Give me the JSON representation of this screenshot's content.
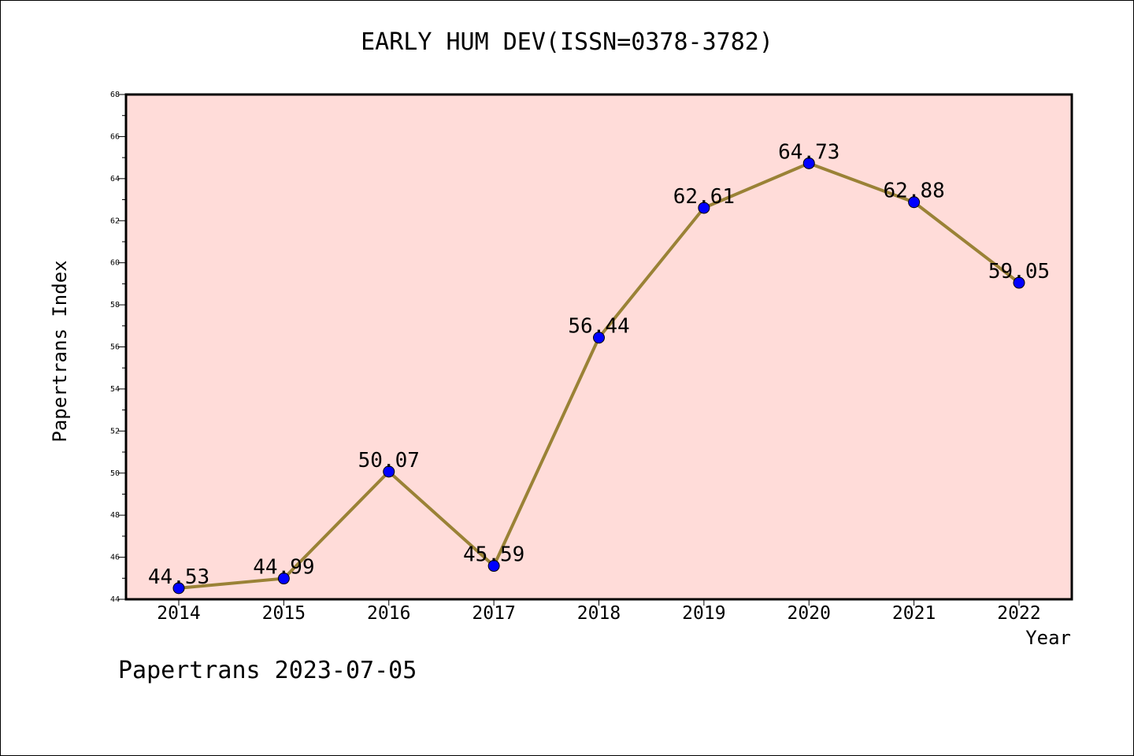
{
  "chart_data": {
    "type": "line",
    "title": "EARLY HUM DEV(ISSN=0378-3782)",
    "xlabel": "Year",
    "ylabel": "Papertrans Index",
    "categories": [
      "2014",
      "2015",
      "2016",
      "2017",
      "2018",
      "2019",
      "2020",
      "2021",
      "2022"
    ],
    "series": [
      {
        "values": [
          44.53,
          44.99,
          50.07,
          45.59,
          56.44,
          62.61,
          64.73,
          62.88,
          59.05
        ]
      }
    ],
    "data_labels": [
      "44.53",
      "44.99",
      "50.07",
      "45.59",
      "56.44",
      "62.61",
      "64.73",
      "62.88",
      "59.05"
    ],
    "ylim": [
      44,
      68
    ],
    "yticks": [
      "44",
      "46",
      "48",
      "50",
      "52",
      "54",
      "56",
      "58",
      "60",
      "62",
      "64",
      "66",
      "68"
    ],
    "grid": false,
    "colors": {
      "plot_background": "#ffdcd9",
      "line": "#9a8236",
      "marker": "#0000ff"
    }
  },
  "footer": {
    "note": "Papertrans 2023-07-05"
  }
}
